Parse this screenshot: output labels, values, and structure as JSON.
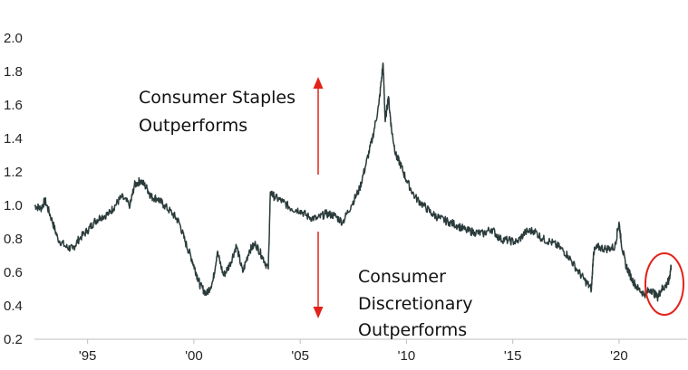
{
  "colors": {
    "line": "#2b3b3b",
    "arrow": "#e2231a",
    "highlight": "#e2231a",
    "axis": "#bfbfbf"
  },
  "annotations": {
    "staples": [
      "Consumer Staples",
      "Outperforms"
    ],
    "discretionary": [
      "Consumer",
      "Discretionary",
      "Outperforms"
    ]
  },
  "chart_data": {
    "type": "line",
    "title": "",
    "xlabel": "",
    "ylabel": "",
    "ylim": [
      0.2,
      2.0
    ],
    "xlim": [
      1992.5,
      2023.2
    ],
    "grid": false,
    "yticks": [
      "2.0",
      "1.8",
      "1.6",
      "1.4",
      "1.2",
      "1.0",
      "0.8",
      "0.6",
      "0.4",
      "0.2"
    ],
    "ytick_values": [
      2.0,
      1.8,
      1.6,
      1.4,
      1.2,
      1.0,
      0.8,
      0.6,
      0.4,
      0.2
    ],
    "xticks": [
      "'95",
      "'00",
      "'05",
      "'10",
      "'15",
      "'20"
    ],
    "xtick_values": [
      1995,
      2000,
      2005,
      2010,
      2015,
      2020
    ],
    "series": [
      {
        "x": [
          1992.5,
          1992.8,
          1993.0,
          1993.3,
          1993.6,
          1994.0,
          1994.3,
          1994.6,
          1995.0,
          1995.3,
          1995.6,
          1996.0,
          1996.3,
          1996.6,
          1997.0,
          1997.2,
          1997.5,
          1997.8,
          1998.0,
          1998.3,
          1998.6,
          1999.0,
          1999.3,
          1999.6,
          1999.9,
          2000.1,
          2000.3,
          2000.6,
          2000.9,
          2001.1,
          2001.4,
          2001.7,
          2002.0,
          2002.3,
          2002.6,
          2002.9,
          2003.2,
          2003.5,
          2003.6,
          2003.8,
          2004.2,
          2004.6,
          2005.0,
          2005.4,
          2005.8,
          2006.2,
          2006.6,
          2007.0,
          2007.4,
          2007.8,
          2008.1,
          2008.4,
          2008.7,
          2008.9,
          2009.0,
          2009.15,
          2009.3,
          2009.5,
          2009.7,
          2010.0,
          2010.4,
          2010.8,
          2011.2,
          2011.6,
          2012.0,
          2012.4,
          2012.8,
          2013.2,
          2013.6,
          2014.0,
          2014.4,
          2014.8,
          2015.2,
          2015.6,
          2016.0,
          2016.4,
          2016.8,
          2017.2,
          2017.6,
          2018.0,
          2018.4,
          2018.7,
          2018.8,
          2019.0,
          2019.4,
          2019.8,
          2020.0,
          2020.1,
          2020.3,
          2020.6,
          2020.9,
          2021.2,
          2021.5,
          2021.8,
          2022.0,
          2022.2,
          2022.35,
          2022.45
        ],
        "values": [
          1.0,
          0.98,
          1.03,
          0.92,
          0.8,
          0.75,
          0.74,
          0.8,
          0.85,
          0.9,
          0.93,
          0.95,
          1.0,
          1.05,
          1.0,
          1.12,
          1.15,
          1.1,
          1.05,
          1.04,
          1.0,
          0.95,
          0.9,
          0.78,
          0.68,
          0.6,
          0.52,
          0.47,
          0.55,
          0.72,
          0.58,
          0.65,
          0.76,
          0.6,
          0.73,
          0.77,
          0.7,
          0.62,
          1.08,
          1.05,
          1.02,
          0.98,
          0.97,
          0.93,
          0.92,
          0.95,
          0.94,
          0.9,
          1.0,
          1.1,
          1.25,
          1.4,
          1.6,
          1.85,
          1.5,
          1.65,
          1.45,
          1.3,
          1.25,
          1.15,
          1.05,
          1.0,
          0.95,
          0.92,
          0.9,
          0.88,
          0.85,
          0.84,
          0.83,
          0.86,
          0.8,
          0.79,
          0.78,
          0.84,
          0.85,
          0.8,
          0.78,
          0.75,
          0.7,
          0.62,
          0.55,
          0.5,
          0.72,
          0.75,
          0.74,
          0.75,
          0.9,
          0.78,
          0.65,
          0.56,
          0.5,
          0.47,
          0.5,
          0.45,
          0.5,
          0.52,
          0.55,
          0.64
        ]
      }
    ]
  }
}
